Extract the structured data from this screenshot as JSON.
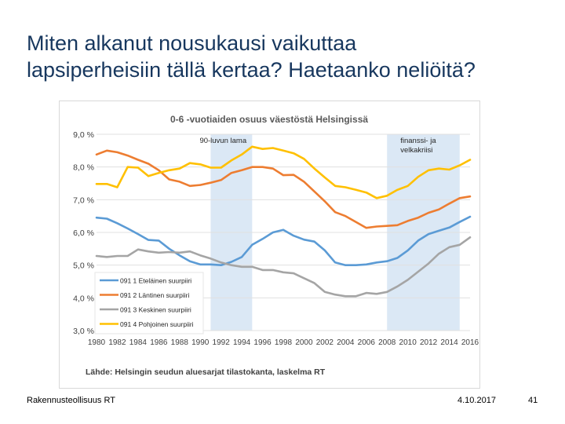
{
  "slide": {
    "title_line1": "Miten alkanut nousukausi vaikuttaa",
    "title_line2": "lapsiperheisiin tällä kertaa? Haetaanko neliöitä?",
    "footer_left": "Rakennusteollisuus RT",
    "footer_date": "4.10.2017",
    "page_number": "41"
  },
  "chart_data": {
    "type": "line",
    "title": "0-6 -vuotiaiden osuus väestöstä Helsingissä",
    "source": "Lähde: Helsingin seudun aluesarjat tilastokanta, laskelma RT",
    "xlabel": "",
    "ylabel": "",
    "ylim": [
      3.0,
      9.0
    ],
    "yticks": [
      "9,0 %",
      "8,0 %",
      "7,0 %",
      "6,0 %",
      "5,0 %",
      "4,0 %",
      "3,0 %"
    ],
    "ytick_values": [
      9,
      8,
      7,
      6,
      5,
      4,
      3
    ],
    "x": [
      1980,
      1981,
      1982,
      1983,
      1984,
      1985,
      1986,
      1987,
      1988,
      1989,
      1990,
      1991,
      1992,
      1993,
      1994,
      1995,
      1996,
      1997,
      1998,
      1999,
      2000,
      2001,
      2002,
      2003,
      2004,
      2005,
      2006,
      2007,
      2008,
      2009,
      2010,
      2011,
      2012,
      2013,
      2014,
      2015,
      2016
    ],
    "xtick_labels": [
      "1980",
      "1982",
      "1984",
      "1986",
      "1988",
      "1990",
      "1992",
      "1994",
      "1996",
      "1998",
      "2000",
      "2002",
      "2004",
      "2006",
      "2008",
      "2010",
      "2012",
      "2014",
      "2016"
    ],
    "shaded_periods": [
      {
        "label": "90-luvun lama",
        "start": 1991,
        "end": 1995
      },
      {
        "label_line1": "finanssi- ja",
        "label_line2": "velkakriisi",
        "start": 2008,
        "end": 2015
      }
    ],
    "legend_position": "bottom-left",
    "series": [
      {
        "name": "091 1 Eteläinen suurpiiri",
        "color": "#5b9bd5",
        "values": [
          6.45,
          6.42,
          6.28,
          6.12,
          5.95,
          5.77,
          5.75,
          5.5,
          5.3,
          5.12,
          5.02,
          5.02,
          5.0,
          5.1,
          5.25,
          5.62,
          5.8,
          6.0,
          6.08,
          5.9,
          5.78,
          5.72,
          5.45,
          5.08,
          5.0,
          5.0,
          5.02,
          5.08,
          5.12,
          5.22,
          5.45,
          5.75,
          5.95,
          6.05,
          6.15,
          6.32,
          6.48
        ]
      },
      {
        "name": "091 2 Läntinen suurpiiri",
        "color": "#ed7d31",
        "values": [
          8.38,
          8.5,
          8.45,
          8.35,
          8.22,
          8.1,
          7.9,
          7.62,
          7.55,
          7.42,
          7.45,
          7.52,
          7.6,
          7.82,
          7.9,
          8.0,
          8.0,
          7.95,
          7.75,
          7.76,
          7.55,
          7.25,
          6.95,
          6.62,
          6.5,
          6.32,
          6.14,
          6.18,
          6.2,
          6.22,
          6.35,
          6.45,
          6.6,
          6.7,
          6.88,
          7.05,
          7.1
        ]
      },
      {
        "name": "091 3 Keskinen suurpiiri",
        "color": "#a5a5a5",
        "values": [
          5.28,
          5.25,
          5.28,
          5.28,
          5.48,
          5.42,
          5.38,
          5.4,
          5.38,
          5.42,
          5.3,
          5.2,
          5.08,
          5.0,
          4.95,
          4.95,
          4.85,
          4.85,
          4.78,
          4.75,
          4.6,
          4.45,
          4.18,
          4.1,
          4.05,
          4.05,
          4.15,
          4.12,
          4.18,
          4.35,
          4.55,
          4.8,
          5.05,
          5.35,
          5.55,
          5.62,
          5.85
        ]
      },
      {
        "name": "091 4 Pohjoinen suurpiiri",
        "color": "#ffc000",
        "values": [
          7.48,
          7.48,
          7.38,
          8.0,
          7.98,
          7.72,
          7.82,
          7.9,
          7.95,
          8.12,
          8.08,
          7.98,
          7.98,
          8.2,
          8.38,
          8.62,
          8.55,
          8.58,
          8.5,
          8.42,
          8.25,
          7.95,
          7.68,
          7.42,
          7.38,
          7.3,
          7.22,
          7.05,
          7.12,
          7.3,
          7.42,
          7.7,
          7.9,
          7.95,
          7.92,
          8.05,
          8.22
        ]
      }
    ]
  }
}
